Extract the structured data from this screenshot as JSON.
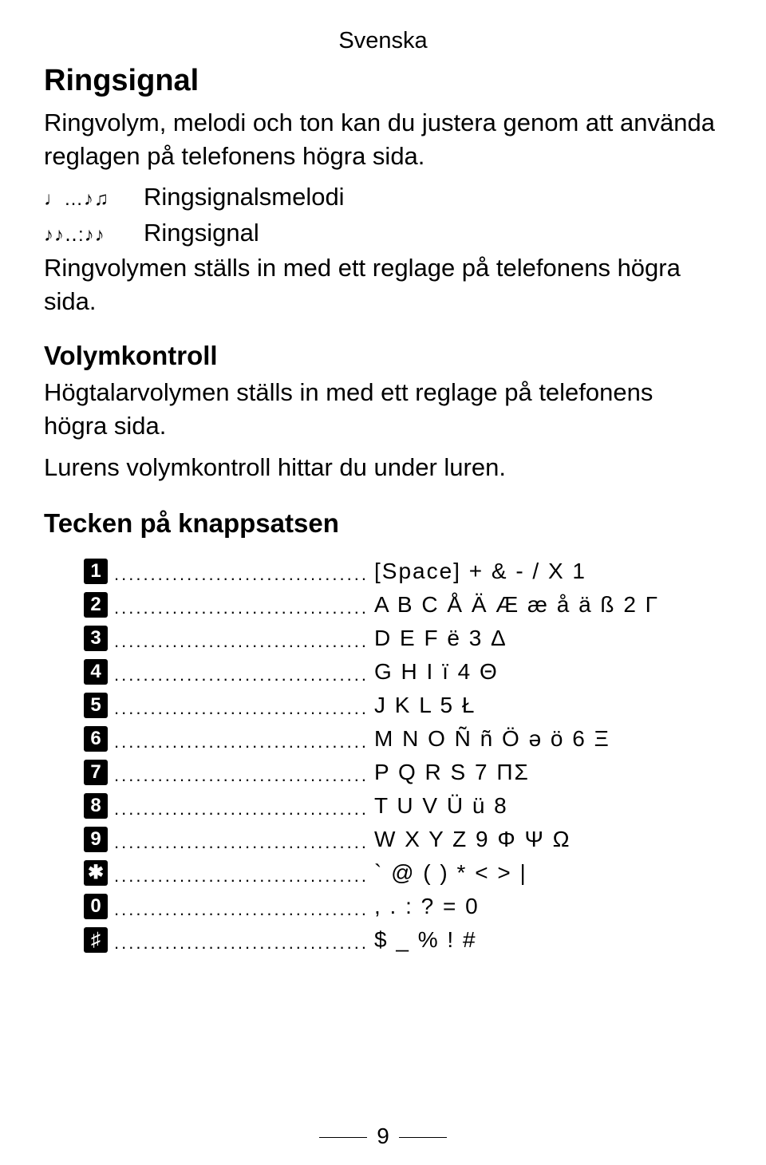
{
  "page": {
    "language_header": "Svenska",
    "page_number": "9"
  },
  "sections": {
    "ringsignal": {
      "title": "Ringsignal",
      "intro": "Ringvolym, melodi och ton kan du justera genom att använda reglagen på telefonens högra sida.",
      "line1_icon": "♩…♪♫",
      "line1_label": "Ringsignalsmelodi",
      "line2_icon": "♪♪‥:♪♪",
      "line2_label": "Ringsignal",
      "body2": "Ringvolymen ställs in med ett reglage på telefonens högra sida."
    },
    "volymkontroll": {
      "title": "Volymkontroll",
      "body1": "Högtalarvolymen ställs in med ett reglage på telefonens högra sida.",
      "body2": "Lurens volymkontroll hittar du under luren."
    },
    "tecken": {
      "title": "Tecken på knappsatsen"
    }
  },
  "keypad": {
    "rows": [
      {
        "key": "1",
        "chars": "[Space] + & - / X 1"
      },
      {
        "key": "2",
        "chars": "A B C Å  Ä Æ æ å ä ß 2 Γ"
      },
      {
        "key": "3",
        "chars": "D E F ë 3 Δ"
      },
      {
        "key": "4",
        "chars": "G H I ï 4 Θ"
      },
      {
        "key": "5",
        "chars": "J K L 5 Ł"
      },
      {
        "key": "6",
        "chars": "M N O Ñ ñ Ö ə ö 6 Ξ"
      },
      {
        "key": "7",
        "chars": "P Q R S 7 ΠΣ"
      },
      {
        "key": "8",
        "chars": "T U  V Ü ü 8"
      },
      {
        "key": "9",
        "chars": "W X Y Z 9 Φ Ψ Ω"
      },
      {
        "key": "✱",
        "chars": "` @ ( ) * < > |"
      },
      {
        "key": "0",
        "chars": ", . : ? = 0"
      },
      {
        "key": "♯",
        "chars": "$ _ % ! #"
      }
    ],
    "dots": "...................................."
  }
}
